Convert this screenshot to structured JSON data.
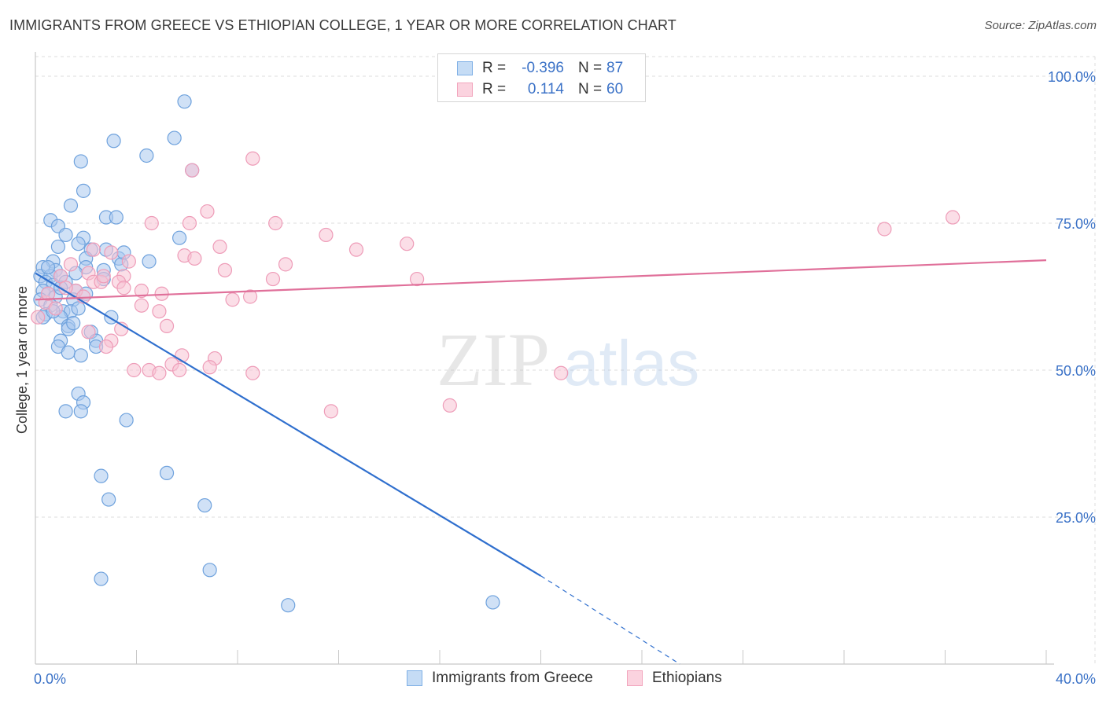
{
  "title": "IMMIGRANTS FROM GREECE VS ETHIOPIAN COLLEGE, 1 YEAR OR MORE CORRELATION CHART",
  "source": "Source: ZipAtlas.com",
  "watermark": {
    "zip": "ZIP",
    "atlas": "atlas"
  },
  "legend_top": [
    {
      "r_label": "R =",
      "r_value": "-0.396",
      "n_label": "N =",
      "n_value": "87"
    },
    {
      "r_label": "R =",
      "r_value": "0.114",
      "n_label": "N =",
      "n_value": "60"
    }
  ],
  "legend_bottom": [
    {
      "label": "Immigrants from Greece"
    },
    {
      "label": "Ethiopians"
    }
  ],
  "colors": {
    "blue_fill": "#a9c9ee",
    "blue_stroke": "#6fa2dd",
    "blue_line": "#2f6fce",
    "pink_fill": "#f7c3d3",
    "pink_stroke": "#ee9cb8",
    "pink_line": "#e0709a",
    "tick_label": "#3b72c7",
    "grid": "#dcdcdc"
  },
  "chart_data": {
    "type": "scatter",
    "title": "IMMIGRANTS FROM GREECE VS ETHIOPIAN COLLEGE, 1 YEAR OR MORE CORRELATION CHART",
    "xlabel": "",
    "ylabel": "College, 1 year or more",
    "xlim": [
      0,
      40
    ],
    "ylim": [
      0,
      105
    ],
    "x_tick_labels": [
      "0.0%",
      "40.0%"
    ],
    "y_ticks": [
      25,
      50,
      75,
      100
    ],
    "y_tick_labels": [
      "25.0%",
      "50.0%",
      "75.0%",
      "100.0%"
    ],
    "grid": true,
    "legend_position": "top-center",
    "series": [
      {
        "name": "Immigrants from Greece",
        "color": "blue",
        "r": -0.396,
        "n": 87,
        "trend": {
          "x": [
            0,
            20
          ],
          "y": [
            66.5,
            15.0
          ],
          "dashed_to": [
            25.5,
            0
          ]
        },
        "points": [
          [
            5.9,
            95.7
          ],
          [
            3.1,
            89.0
          ],
          [
            5.5,
            89.5
          ],
          [
            4.4,
            86.5
          ],
          [
            1.8,
            85.5
          ],
          [
            6.2,
            84.0
          ],
          [
            1.9,
            80.5
          ],
          [
            1.4,
            78.0
          ],
          [
            0.6,
            75.5
          ],
          [
            2.8,
            76.0
          ],
          [
            3.2,
            76.0
          ],
          [
            0.9,
            74.5
          ],
          [
            1.2,
            73.0
          ],
          [
            1.9,
            72.5
          ],
          [
            5.7,
            72.5
          ],
          [
            0.9,
            71.0
          ],
          [
            1.7,
            71.5
          ],
          [
            2.2,
            70.5
          ],
          [
            2.8,
            70.5
          ],
          [
            2.0,
            69.0
          ],
          [
            3.3,
            69.0
          ],
          [
            4.5,
            68.5
          ],
          [
            0.7,
            68.5
          ],
          [
            0.3,
            67.5
          ],
          [
            0.8,
            67.0
          ],
          [
            2.0,
            67.5
          ],
          [
            2.7,
            67.0
          ],
          [
            3.4,
            68.0
          ],
          [
            0.2,
            66.0
          ],
          [
            0.6,
            66.0
          ],
          [
            1.0,
            66.0
          ],
          [
            1.6,
            66.5
          ],
          [
            2.7,
            65.5
          ],
          [
            0.4,
            65.0
          ],
          [
            0.7,
            64.5
          ],
          [
            1.2,
            65.0
          ],
          [
            0.3,
            63.5
          ],
          [
            0.5,
            63.0
          ],
          [
            1.6,
            63.5
          ],
          [
            0.8,
            62.5
          ],
          [
            0.2,
            62.0
          ],
          [
            1.5,
            62.0
          ],
          [
            0.6,
            61.0
          ],
          [
            1.1,
            60.0
          ],
          [
            1.4,
            60.0
          ],
          [
            1.7,
            60.5
          ],
          [
            0.4,
            59.5
          ],
          [
            1.0,
            59.0
          ],
          [
            3.0,
            59.0
          ],
          [
            0.3,
            59.0
          ],
          [
            1.3,
            57.5
          ],
          [
            1.3,
            57.0
          ],
          [
            2.2,
            56.5
          ],
          [
            1.0,
            55.0
          ],
          [
            2.4,
            55.0
          ],
          [
            2.4,
            54.0
          ],
          [
            0.9,
            54.0
          ],
          [
            1.3,
            53.0
          ],
          [
            1.8,
            52.5
          ],
          [
            1.7,
            46.0
          ],
          [
            1.9,
            44.5
          ],
          [
            1.2,
            43.0
          ],
          [
            1.8,
            43.0
          ],
          [
            3.6,
            41.5
          ],
          [
            5.2,
            32.5
          ],
          [
            2.6,
            32.0
          ],
          [
            2.9,
            28.0
          ],
          [
            6.7,
            27.0
          ],
          [
            6.9,
            16.0
          ],
          [
            2.6,
            14.5
          ],
          [
            10.0,
            10.0
          ],
          [
            18.1,
            10.5
          ],
          [
            0.5,
            67.5
          ],
          [
            1.0,
            64.0
          ],
          [
            2.0,
            63.0
          ],
          [
            0.7,
            60.0
          ],
          [
            1.5,
            58.0
          ],
          [
            3.5,
            70.0
          ]
        ]
      },
      {
        "name": "Ethiopians",
        "color": "pink",
        "r": 0.114,
        "n": 60,
        "trend": {
          "x": [
            0,
            40
          ],
          "y": [
            62.0,
            68.7
          ]
        },
        "points": [
          [
            8.6,
            86.0
          ],
          [
            6.2,
            84.0
          ],
          [
            6.8,
            77.0
          ],
          [
            4.6,
            75.0
          ],
          [
            6.1,
            75.0
          ],
          [
            9.5,
            75.0
          ],
          [
            11.5,
            73.0
          ],
          [
            33.6,
            74.0
          ],
          [
            36.3,
            76.0
          ],
          [
            7.3,
            71.0
          ],
          [
            14.7,
            71.5
          ],
          [
            12.7,
            70.5
          ],
          [
            2.3,
            70.5
          ],
          [
            3.0,
            70.0
          ],
          [
            5.9,
            69.5
          ],
          [
            6.3,
            69.0
          ],
          [
            3.7,
            68.5
          ],
          [
            1.4,
            68.0
          ],
          [
            9.9,
            68.0
          ],
          [
            7.5,
            67.0
          ],
          [
            2.1,
            66.5
          ],
          [
            3.5,
            66.0
          ],
          [
            1.0,
            66.0
          ],
          [
            9.4,
            65.5
          ],
          [
            15.1,
            65.5
          ],
          [
            2.3,
            65.0
          ],
          [
            2.6,
            65.0
          ],
          [
            3.3,
            65.0
          ],
          [
            3.5,
            64.0
          ],
          [
            4.2,
            63.5
          ],
          [
            1.6,
            63.5
          ],
          [
            5.0,
            63.0
          ],
          [
            1.9,
            62.5
          ],
          [
            7.8,
            62.0
          ],
          [
            8.5,
            62.5
          ],
          [
            4.2,
            61.0
          ],
          [
            4.9,
            60.0
          ],
          [
            0.4,
            61.5
          ],
          [
            0.1,
            59.0
          ],
          [
            5.2,
            57.5
          ],
          [
            3.4,
            57.0
          ],
          [
            2.1,
            56.5
          ],
          [
            3.0,
            55.0
          ],
          [
            2.8,
            54.0
          ],
          [
            5.8,
            52.5
          ],
          [
            7.1,
            52.0
          ],
          [
            5.4,
            51.0
          ],
          [
            6.9,
            50.5
          ],
          [
            3.9,
            50.0
          ],
          [
            4.5,
            50.0
          ],
          [
            4.9,
            49.5
          ],
          [
            5.7,
            50.0
          ],
          [
            8.6,
            49.5
          ],
          [
            20.8,
            49.5
          ],
          [
            16.4,
            44.0
          ],
          [
            11.7,
            43.0
          ],
          [
            0.5,
            63.0
          ],
          [
            1.2,
            64.0
          ],
          [
            0.8,
            60.5
          ],
          [
            2.7,
            66.0
          ]
        ]
      }
    ]
  }
}
